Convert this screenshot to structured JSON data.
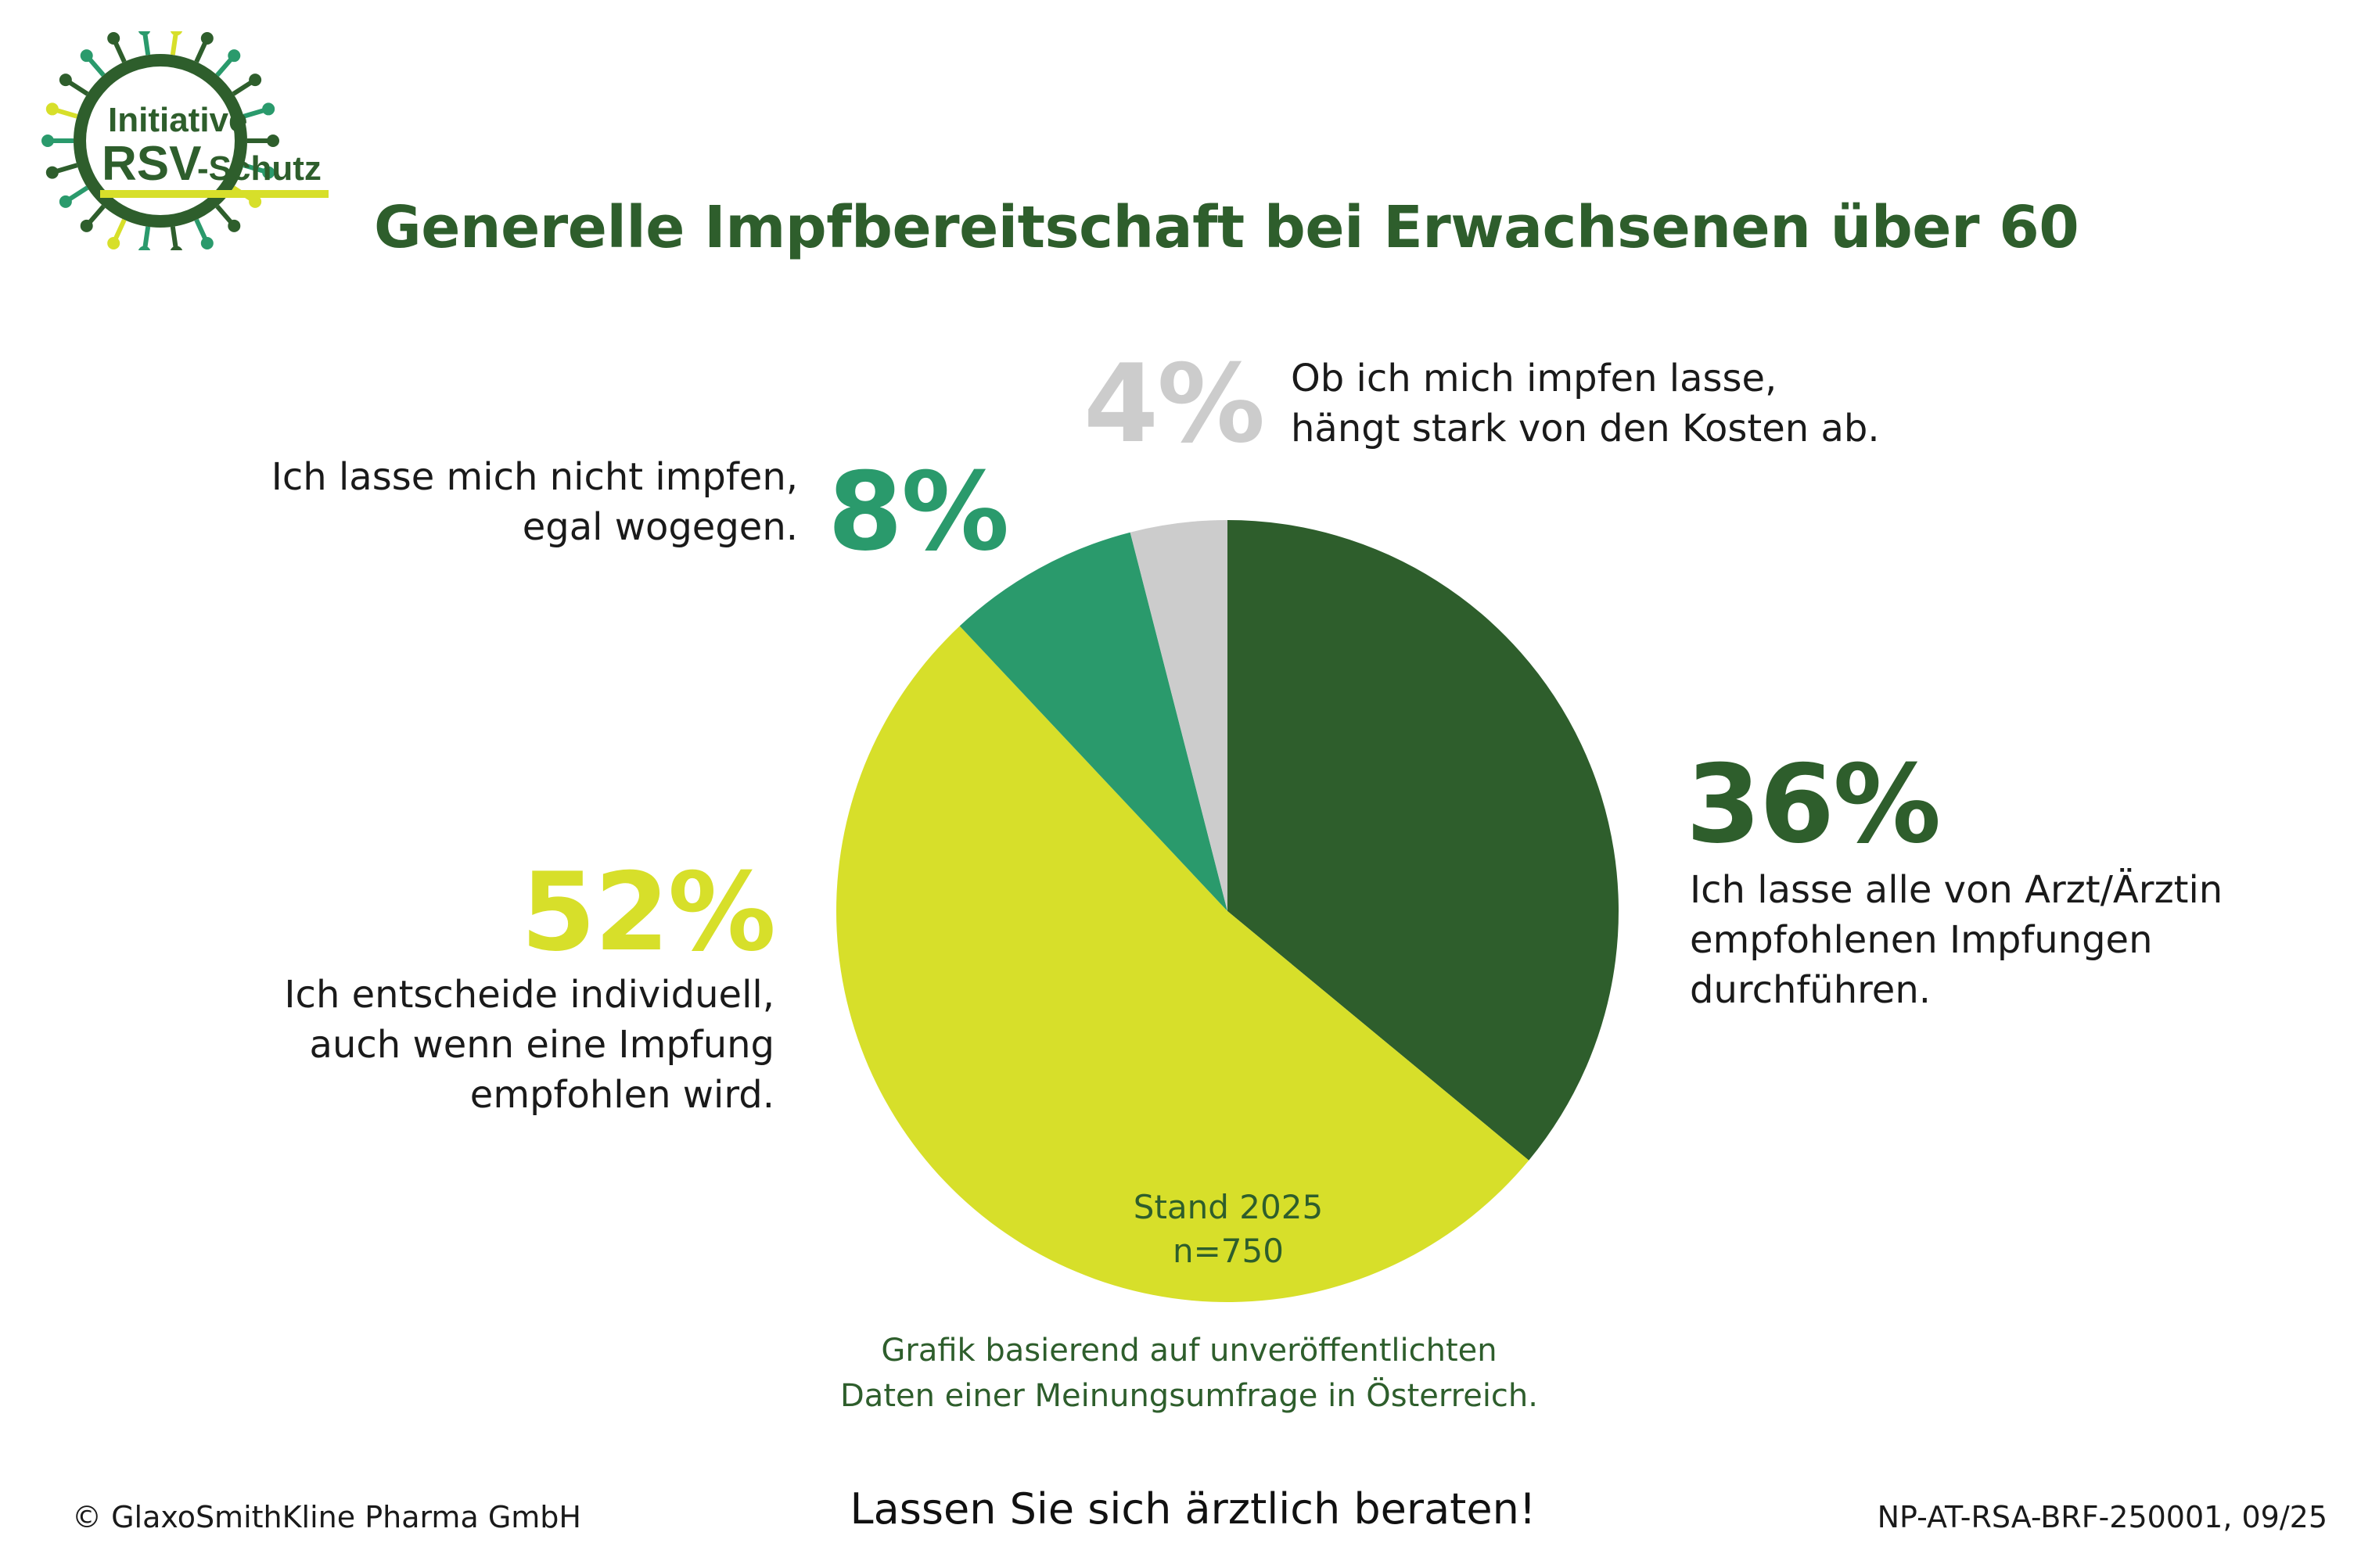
{
  "logo": {
    "line1": "Initiative",
    "line2a": "RSV",
    "line2b": "-Schutz"
  },
  "title": "Generelle Impfbereitschaft bei Erwachsenen über 60",
  "chart_data": {
    "type": "pie",
    "title": "Generelle Impfbereitschaft bei Erwachsenen über 60",
    "start_angle": "12 o'clock, clockwise",
    "slices": [
      {
        "key": "arzt",
        "value": 36,
        "percent_label": "36%",
        "label": [
          "Ich lasse alle von Arzt/Ärztin",
          "empfohlenen Impfungen",
          "durchführen."
        ],
        "color": "#2e5e2c"
      },
      {
        "key": "individuell",
        "value": 52,
        "percent_label": "52%",
        "label": [
          "Ich entscheide individuell,",
          "auch wenn eine Impfung",
          "empfohlen wird."
        ],
        "color": "#d7df2a"
      },
      {
        "key": "nicht",
        "value": 8,
        "percent_label": "8%",
        "label": [
          "Ich lasse mich nicht impfen,",
          "egal wogegen."
        ],
        "color": "#2a9a6c"
      },
      {
        "key": "kosten",
        "value": 4,
        "percent_label": "4%",
        "label": [
          "Ob ich mich impfen lasse,",
          "hängt stark von den Kosten ab."
        ],
        "color": "#cccccc"
      }
    ],
    "annotation": [
      "Stand 2025",
      "n=750"
    ]
  },
  "note": [
    "Grafik basierend auf unveröffentlichten",
    "Daten einer Meinungsumfrage in Österreich."
  ],
  "footer": {
    "copyright": "© GlaxoSmithKline Pharma GmbH",
    "cta": "Lassen Sie sich ärztlich beraten!",
    "code": "NP-AT-RSA-BRF-250001, 09/25"
  }
}
